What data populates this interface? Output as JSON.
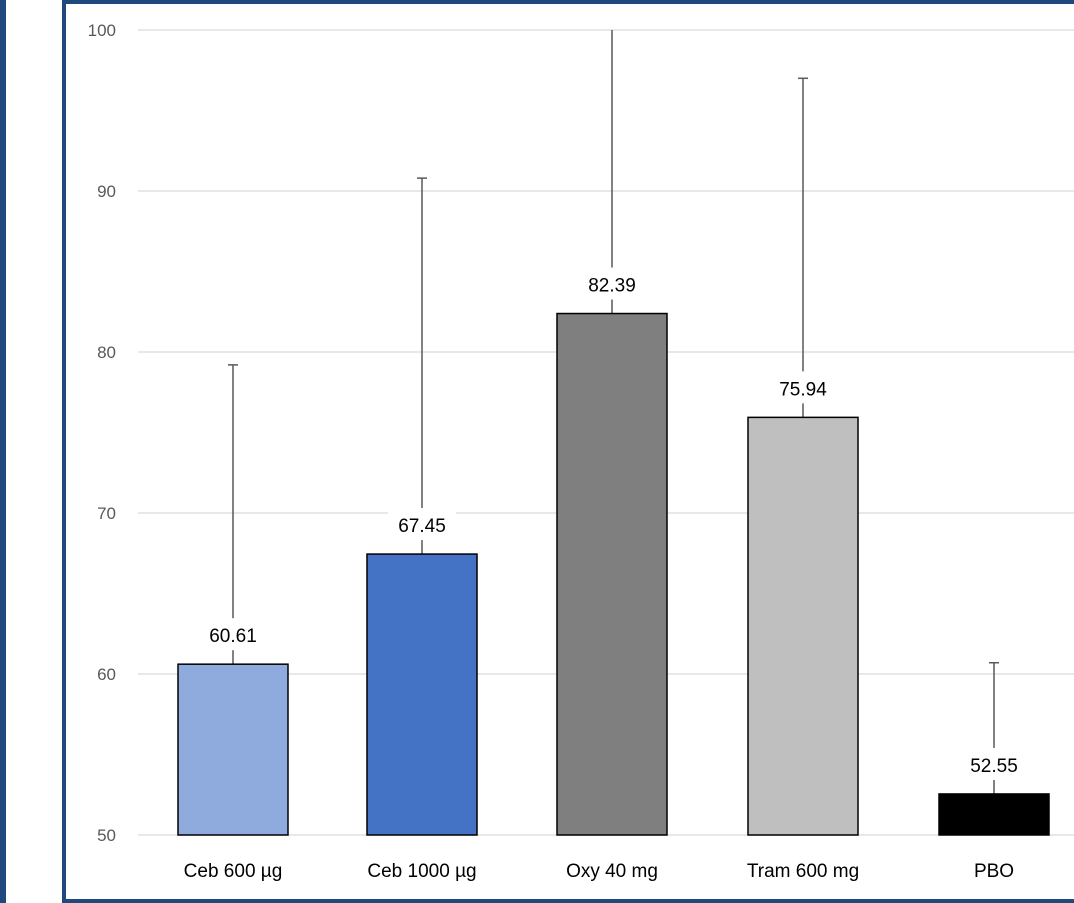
{
  "chart_data": {
    "type": "bar",
    "title": "",
    "xlabel": "",
    "ylabel": "",
    "categories": [
      "Ceb 600 µg",
      "Ceb 1000 µg",
      "Oxy 40 mg",
      "Tram 600 mg",
      "PBO"
    ],
    "values": [
      60.61,
      67.45,
      82.39,
      75.94,
      52.55
    ],
    "value_labels": [
      "60.61",
      "67.45",
      "82.39",
      "75.94",
      "52.55"
    ],
    "error_upper": [
      79.2,
      90.8,
      100.0,
      97.0,
      60.7
    ],
    "colors": [
      "#8faadc",
      "#4472c4",
      "#7f7f7f",
      "#bfbfbf",
      "#000000"
    ],
    "ylim": [
      50,
      100
    ],
    "yticks": [
      50,
      60,
      70,
      80,
      90,
      100
    ],
    "grid": true,
    "legend": "none"
  },
  "style": {
    "frame_color": "#1f497d",
    "grid_color": "#d9d9d9",
    "errorbar_color": "#595959"
  }
}
